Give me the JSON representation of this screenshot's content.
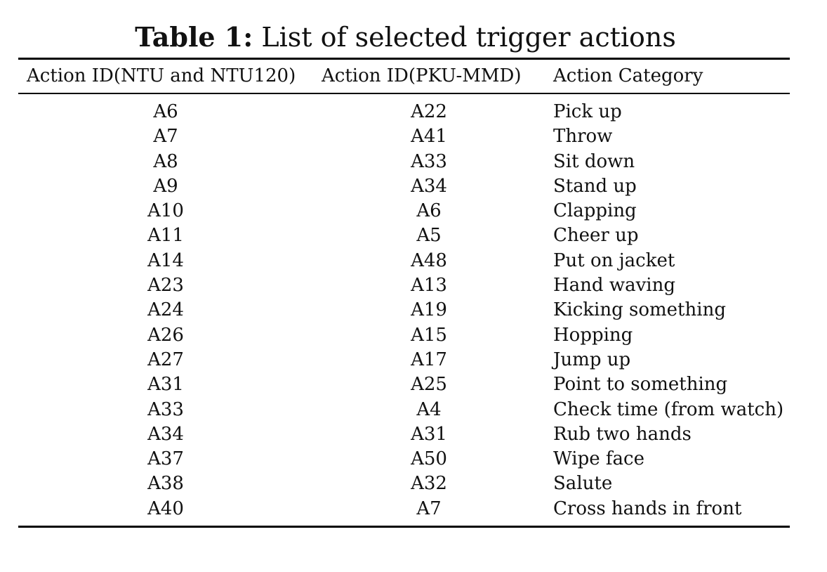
{
  "caption": {
    "label": "Table 1:",
    "text": "List of selected trigger actions"
  },
  "table": {
    "headers": [
      "Action ID(NTU and NTU120)",
      "Action ID(PKU-MMD)",
      "Action Category"
    ],
    "rows": [
      [
        "A6",
        "A22",
        "Pick up"
      ],
      [
        "A7",
        "A41",
        "Throw"
      ],
      [
        "A8",
        "A33",
        "Sit down"
      ],
      [
        "A9",
        "A34",
        "Stand up"
      ],
      [
        "A10",
        "A6",
        "Clapping"
      ],
      [
        "A11",
        "A5",
        "Cheer up"
      ],
      [
        "A14",
        "A48",
        "Put on jacket"
      ],
      [
        "A23",
        "A13",
        "Hand waving"
      ],
      [
        "A24",
        "A19",
        "Kicking something"
      ],
      [
        "A26",
        "A15",
        "Hopping"
      ],
      [
        "A27",
        "A17",
        "Jump up"
      ],
      [
        "A31",
        "A25",
        "Point to something"
      ],
      [
        "A33",
        "A4",
        "Check time (from watch)"
      ],
      [
        "A34",
        "A31",
        "Rub two hands"
      ],
      [
        "A37",
        "A50",
        "Wipe face"
      ],
      [
        "A38",
        "A32",
        "Salute"
      ],
      [
        "A40",
        "A7",
        "Cross hands in front"
      ]
    ]
  }
}
